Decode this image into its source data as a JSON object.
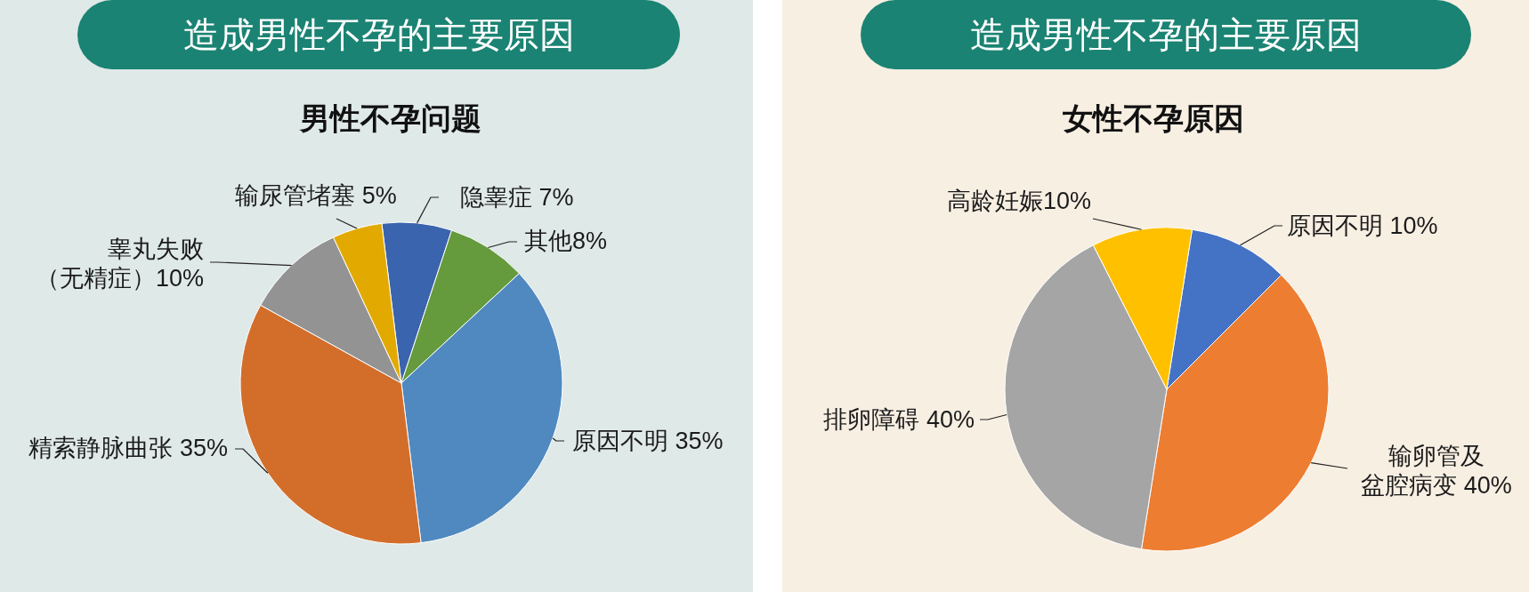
{
  "chart_data": [
    {
      "type": "pie",
      "title": "造成男性不孕的主要原因",
      "subtitle": "男性不孕问题",
      "categories": [
        "隐睾症 7%",
        "其他8%",
        "原因不明 35%",
        "精索静脉曲张 35%",
        "睾丸失败（无精症）10%",
        "输尿管堵塞 5%"
      ],
      "values": [
        7,
        8,
        35,
        35,
        10,
        5
      ],
      "colors": [
        "#3a64ad",
        "#659a3d",
        "#4f89c0",
        "#d36e2a",
        "#939393",
        "#e2aa00"
      ]
    },
    {
      "type": "pie",
      "title": "造成男性不孕的主要原因",
      "subtitle": "女性不孕原因",
      "categories": [
        "原因不明 10%",
        "输卵管及盆腔病变 40%",
        "排卵障碍 40%",
        "高龄妊娠10%"
      ],
      "values": [
        10,
        40,
        40,
        10
      ],
      "colors": [
        "#4472c4",
        "#ed7d31",
        "#a5a5a5",
        "#ffc000"
      ]
    }
  ]
}
